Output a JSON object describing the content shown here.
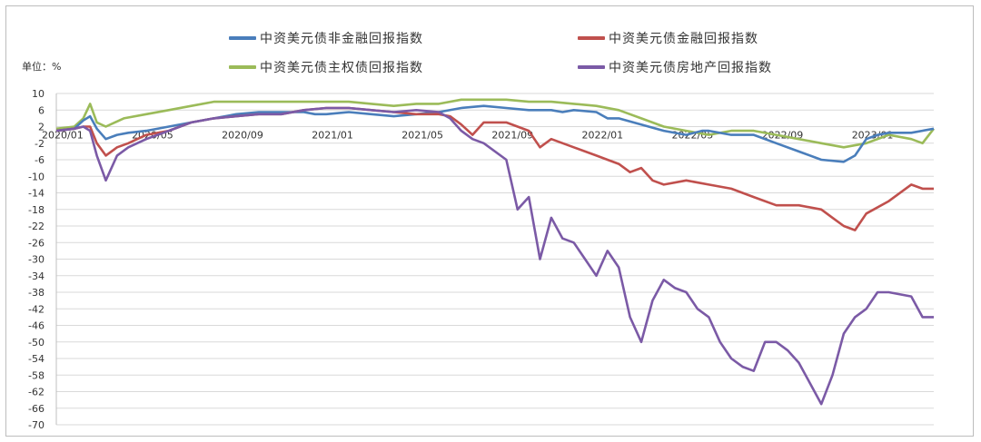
{
  "unit_label": "单位：%",
  "colors": {
    "nonfinancial": "#4a7ebb",
    "financial": "#c0504d",
    "sovereign": "#9bbb59",
    "realestate": "#7b5aa6"
  },
  "legend": [
    {
      "name": "中资美元债非金融回报指数",
      "color": "#4a7ebb"
    },
    {
      "name": "中资美元债金融回报指数",
      "color": "#c0504d"
    },
    {
      "name": "中资美元债主权债回报指数",
      "color": "#9bbb59"
    },
    {
      "name": "中资美元债房地产回报指数",
      "color": "#7b5aa6"
    }
  ],
  "chart_data": {
    "type": "line",
    "title": "",
    "xlabel": "",
    "ylabel": "单位：%",
    "ylim": [
      -70,
      10
    ],
    "yticks": [
      10,
      6,
      2,
      -2,
      -6,
      -10,
      -14,
      -18,
      -22,
      -26,
      -30,
      -34,
      -38,
      -42,
      -46,
      -50,
      -54,
      -58,
      -62,
      -66,
      -70
    ],
    "xlim": [
      "2020-01",
      "2023-04"
    ],
    "xticks": [
      "2020/01",
      "2020/05",
      "2020/09",
      "2021/01",
      "2021/05",
      "2021/09",
      "2022/01",
      "2022/05",
      "2022/09",
      "2023/01"
    ],
    "grid": true,
    "legend_position": "top",
    "series": [
      {
        "name": "中资美元债非金融回报指数",
        "x": [
          0,
          0.8,
          1.2,
          1.5,
          1.8,
          2.2,
          2.7,
          3.2,
          4,
          5,
          6,
          7,
          8,
          9,
          10,
          11,
          11.5,
          12,
          13,
          14,
          15,
          16,
          17,
          18,
          19,
          20,
          21,
          22,
          22.5,
          23,
          24,
          24.5,
          25,
          26,
          27,
          28,
          28.7,
          29,
          30,
          31,
          32,
          33,
          34,
          35,
          35.5,
          36,
          36.5,
          37,
          38,
          39
        ],
        "y": [
          1,
          1.5,
          3.5,
          4.5,
          1.5,
          -1,
          0,
          0.5,
          1,
          2,
          3,
          4,
          5,
          5.5,
          5.5,
          5.5,
          5,
          5,
          5.5,
          5,
          4.5,
          5,
          5.5,
          6.5,
          7,
          6.5,
          6,
          6,
          5.5,
          6,
          5.5,
          4,
          4,
          2.5,
          1,
          0,
          1,
          1,
          0,
          0,
          -2,
          -4,
          -6,
          -6.5,
          -5,
          -1,
          0,
          0.5,
          0.5,
          1.5
        ]
      },
      {
        "name": "中资美元债金融回报指数",
        "x": [
          0,
          0.8,
          1.2,
          1.5,
          1.8,
          2.2,
          2.7,
          3.2,
          4,
          5,
          6,
          7,
          8,
          9,
          10,
          11,
          12,
          13,
          14,
          15,
          16,
          17,
          17.5,
          18,
          18.5,
          19,
          20,
          21,
          21.5,
          22,
          23,
          24,
          24.5,
          25,
          25.5,
          26,
          26.5,
          27,
          28,
          29,
          30,
          31,
          32,
          33,
          34,
          34.5,
          35,
          35.5,
          36,
          37,
          38,
          38.5,
          39
        ],
        "y": [
          1,
          1.5,
          2,
          2,
          -2,
          -5,
          -3,
          -2,
          0,
          1,
          3,
          4,
          4.5,
          5,
          5,
          6,
          6.5,
          6.5,
          6,
          5.5,
          5,
          5,
          4.5,
          2.5,
          0,
          3,
          3,
          1,
          -3,
          -1,
          -3,
          -5,
          -6,
          -7,
          -9,
          -8,
          -11,
          -12,
          -11,
          -12,
          -13,
          -15,
          -17,
          -17,
          -18,
          -20,
          -22,
          -23,
          -19,
          -16,
          -12,
          -13,
          -13
        ]
      },
      {
        "name": "中资美元债主权债回报指数",
        "x": [
          0,
          0.8,
          1.2,
          1.5,
          1.8,
          2.2,
          3,
          4,
          5,
          6,
          7,
          8,
          9,
          10,
          11,
          12,
          13,
          14,
          15,
          16,
          17,
          18,
          19,
          20,
          21,
          22,
          23,
          24,
          25,
          26,
          27,
          28,
          29,
          30,
          31,
          32,
          33,
          34,
          35,
          36,
          37,
          38,
          38.5,
          39
        ],
        "y": [
          1.5,
          2,
          4,
          7.5,
          3,
          2,
          4,
          5,
          6,
          7,
          8,
          8,
          8,
          8,
          8,
          8,
          8,
          7.5,
          7,
          7.5,
          7.5,
          8.5,
          8.5,
          8.5,
          8,
          8,
          7.5,
          7,
          6,
          4,
          2,
          1,
          0,
          1,
          1,
          0,
          -1,
          -2,
          -3,
          -2,
          0,
          -1,
          -2,
          1.5
        ]
      },
      {
        "name": "中资美元债房地产回报指数",
        "x": [
          0,
          0.8,
          1.2,
          1.5,
          1.8,
          2.2,
          2.7,
          3.2,
          4,
          5,
          6,
          7,
          8,
          9,
          10,
          11,
          12,
          13,
          14,
          15,
          16,
          17,
          17.5,
          18,
          18.5,
          19,
          20,
          20.5,
          21,
          21.5,
          22,
          22.5,
          23,
          23.5,
          24,
          24.5,
          25,
          25.5,
          26,
          26.5,
          27,
          27.5,
          28,
          28.5,
          29,
          29.5,
          30,
          30.5,
          31,
          31.5,
          32,
          32.5,
          33,
          33.5,
          34,
          34.5,
          35,
          35.5,
          36,
          36.5,
          37,
          38,
          38.5,
          39
        ],
        "y": [
          1,
          1.5,
          2,
          1,
          -5,
          -11,
          -5,
          -3,
          -1,
          1,
          3,
          4,
          4.5,
          5,
          5,
          6,
          6.5,
          6.5,
          6,
          5.5,
          6,
          5.5,
          4,
          1,
          -1,
          -2,
          -6,
          -18,
          -15,
          -30,
          -20,
          -25,
          -26,
          -30,
          -34,
          -28,
          -32,
          -44,
          -50,
          -40,
          -35,
          -37,
          -38,
          -42,
          -44,
          -50,
          -54,
          -56,
          -57,
          -50,
          -50,
          -52,
          -55,
          -60,
          -65,
          -58,
          -48,
          -44,
          -42,
          -38,
          -38,
          -39,
          -44,
          -44
        ]
      }
    ]
  }
}
